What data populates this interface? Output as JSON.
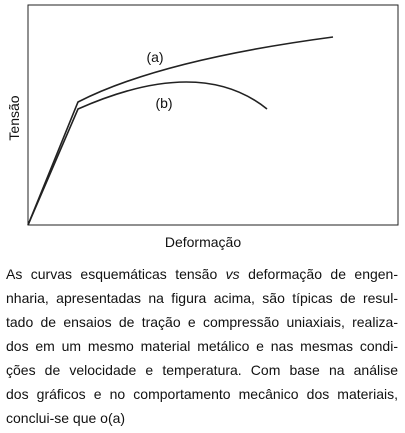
{
  "figure": {
    "curve_labels": [
      "(a)",
      "(b)"
    ],
    "y_label": "Tensão",
    "x_label": "Deformação"
  },
  "paragraph": {
    "line_1": [
      "As curvas esquemáticas tensão ",
      "vs",
      " deformação de engen-"
    ],
    "lines": [
      "nharia, apresentadas na figura acima, são típicas de resul-",
      "tado de ensaios de tração e compressão uniaxiais, realiza-",
      "dos em um mesmo material metálico e nas mesmas condi-",
      "ções de velocidade e temperatura. Com base na análise",
      "dos gráficos e no comportamento mecânico dos materiais,",
      "conclui-se que o(a)"
    ]
  }
}
